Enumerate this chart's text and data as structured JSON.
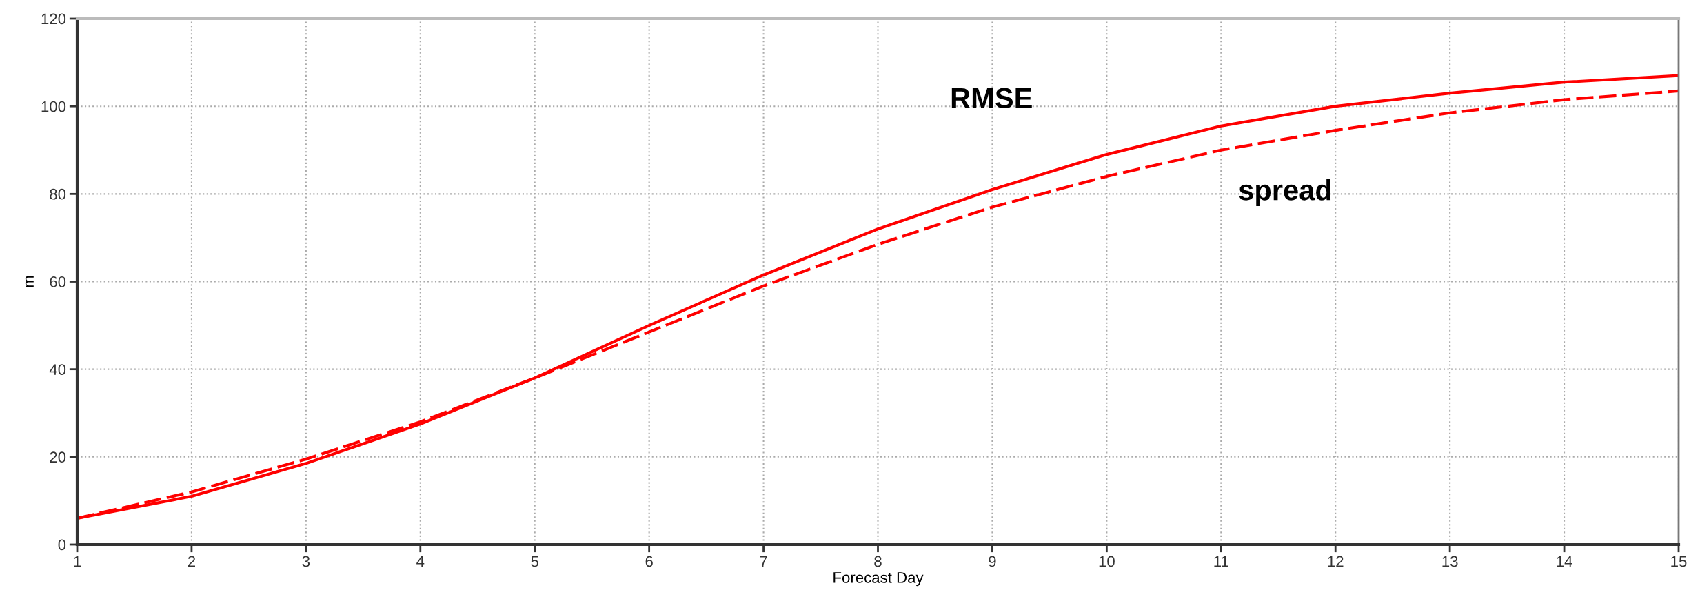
{
  "chart_data": {
    "type": "line",
    "xlabel": "Forecast Day",
    "ylabel": "m",
    "x": [
      1,
      2,
      3,
      4,
      5,
      6,
      7,
      8,
      9,
      10,
      11,
      12,
      13,
      14,
      15
    ],
    "series": [
      {
        "name": "RMSE",
        "color": "#ff0000",
        "line_style": "solid",
        "values": [
          6,
          11,
          18.5,
          27.5,
          38,
          50,
          61.5,
          72,
          81,
          89,
          95.5,
          100,
          103,
          105.5,
          107
        ]
      },
      {
        "name": "spread",
        "color": "#ff0000",
        "line_style": "dashed",
        "values": [
          6,
          12,
          19.5,
          28,
          38,
          48.5,
          59,
          68.5,
          77,
          84,
          90,
          94.5,
          98.5,
          101.5,
          103.5
        ]
      }
    ],
    "xlim": [
      1,
      15
    ],
    "xticks": [
      1,
      2,
      3,
      4,
      5,
      6,
      7,
      8,
      9,
      10,
      11,
      12,
      13,
      14,
      15
    ],
    "ylim": [
      0,
      120
    ],
    "yticks": [
      0,
      20,
      40,
      60,
      80,
      100,
      120
    ],
    "grid": true,
    "marker": "none"
  }
}
